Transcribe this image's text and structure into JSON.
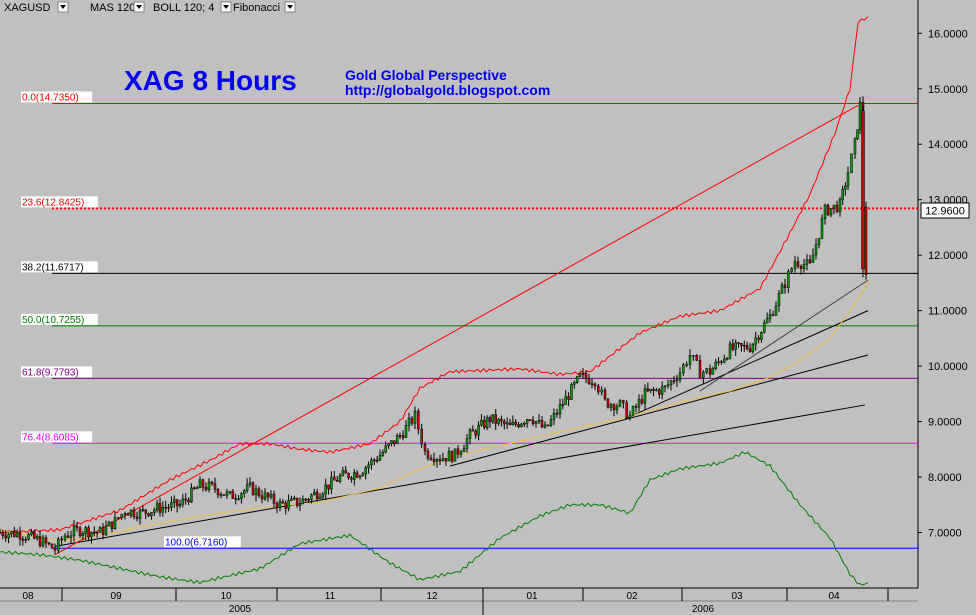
{
  "toolbar": {
    "items": [
      {
        "label": "XAGUSD",
        "color": "#000000"
      },
      {
        "label": "MAS 120",
        "color": "#f0c040"
      },
      {
        "label": "BOLL 120; 4",
        "color": "#ff0000"
      },
      {
        "label": "Fibonacci",
        "color": "#000000"
      }
    ]
  },
  "title": "XAG 8 Hours",
  "subtitle_1": "Gold Global Perspective",
  "subtitle_2": "http://globalgold.blogspot.com",
  "price_badge": "12.9600",
  "chart_data": {
    "type": "candlestick",
    "symbol": "XAGUSD",
    "timeframe": "8 Hours",
    "ylim": [
      6.0,
      16.6
    ],
    "y_ticks": [
      "16.0000",
      "15.0000",
      "14.0000",
      "13.0000",
      "12.0000",
      "11.0000",
      "10.0000",
      "9.0000",
      "8.0000",
      "7.0000"
    ],
    "x_ticks_month": [
      "08",
      "09",
      "10",
      "11",
      "12",
      "01",
      "02",
      "03",
      "04"
    ],
    "x_ticks_year": [
      "2005",
      "2006"
    ],
    "last_price": 12.96,
    "fibonacci": [
      {
        "label": "0.0(14.7350)",
        "value": 14.735,
        "color": "#ff0000",
        "style": "solid"
      },
      {
        "label": "23.6(12.8425)",
        "value": 12.8425,
        "color": "#ff0000",
        "style": "dotted"
      },
      {
        "label": "38.2(11.6717)",
        "value": 11.6717,
        "color": "#000000",
        "style": "solid"
      },
      {
        "label": "50.0(10.7255)",
        "value": 10.7255,
        "color": "#008000",
        "style": "solid"
      },
      {
        "label": "61.8(9.7793)",
        "value": 9.7793,
        "color": "#800080",
        "style": "solid"
      },
      {
        "label": "76.4(8.6085)",
        "value": 8.6085,
        "color": "#ff00ff",
        "style": "solid"
      },
      {
        "label": "100.0(6.7160)",
        "value": 6.716,
        "color": "#0000ff",
        "style": "solid"
      }
    ],
    "price_series": [
      [
        0,
        7.0
      ],
      [
        20,
        6.98
      ],
      [
        40,
        6.85
      ],
      [
        55,
        6.7
      ],
      [
        65,
        6.95
      ],
      [
        80,
        7.05
      ],
      [
        100,
        7.0
      ],
      [
        115,
        7.2
      ],
      [
        125,
        7.4
      ],
      [
        140,
        7.35
      ],
      [
        160,
        7.45
      ],
      [
        180,
        7.5
      ],
      [
        200,
        7.85
      ],
      [
        215,
        7.8
      ],
      [
        230,
        7.65
      ],
      [
        250,
        7.8
      ],
      [
        265,
        7.65
      ],
      [
        280,
        7.5
      ],
      [
        300,
        7.55
      ],
      [
        320,
        7.75
      ],
      [
        340,
        8.0
      ],
      [
        360,
        8.1
      ],
      [
        380,
        8.4
      ],
      [
        400,
        8.75
      ],
      [
        415,
        9.1
      ],
      [
        425,
        8.45
      ],
      [
        440,
        8.35
      ],
      [
        455,
        8.4
      ],
      [
        470,
        8.75
      ],
      [
        490,
        9.05
      ],
      [
        510,
        8.9
      ],
      [
        530,
        9.1
      ],
      [
        545,
        8.85
      ],
      [
        560,
        9.25
      ],
      [
        580,
        9.8
      ],
      [
        595,
        9.75
      ],
      [
        605,
        9.35
      ],
      [
        620,
        9.3
      ],
      [
        630,
        9.1
      ],
      [
        645,
        9.5
      ],
      [
        665,
        9.6
      ],
      [
        680,
        9.9
      ],
      [
        690,
        10.2
      ],
      [
        700,
        9.9
      ],
      [
        710,
        9.9
      ],
      [
        730,
        10.3
      ],
      [
        750,
        10.35
      ],
      [
        770,
        10.9
      ],
      [
        785,
        11.5
      ],
      [
        795,
        11.9
      ],
      [
        810,
        11.8
      ],
      [
        825,
        12.8
      ],
      [
        840,
        12.9
      ],
      [
        848,
        13.5
      ],
      [
        855,
        14.0
      ],
      [
        860,
        14.7
      ],
      [
        863,
        12.9
      ],
      [
        866,
        11.7
      ],
      [
        870,
        12.9
      ]
    ],
    "sma_series": [
      [
        0,
        7.05
      ],
      [
        60,
        6.85
      ],
      [
        100,
        6.95
      ],
      [
        140,
        7.1
      ],
      [
        200,
        7.3
      ],
      [
        260,
        7.45
      ],
      [
        320,
        7.55
      ],
      [
        380,
        7.8
      ],
      [
        420,
        8.15
      ],
      [
        460,
        8.4
      ],
      [
        520,
        8.65
      ],
      [
        580,
        8.9
      ],
      [
        620,
        9.05
      ],
      [
        680,
        9.35
      ],
      [
        730,
        9.55
      ],
      [
        770,
        9.8
      ],
      [
        800,
        10.1
      ],
      [
        830,
        10.5
      ],
      [
        850,
        11.0
      ],
      [
        870,
        11.55
      ]
    ],
    "boll_upper": [
      [
        0,
        7.0
      ],
      [
        60,
        7.05
      ],
      [
        120,
        7.4
      ],
      [
        170,
        7.95
      ],
      [
        210,
        8.3
      ],
      [
        240,
        8.6
      ],
      [
        270,
        8.6
      ],
      [
        300,
        8.5
      ],
      [
        330,
        8.45
      ],
      [
        370,
        8.6
      ],
      [
        400,
        9.0
      ],
      [
        420,
        9.6
      ],
      [
        450,
        9.9
      ],
      [
        520,
        9.95
      ],
      [
        560,
        9.85
      ],
      [
        590,
        9.9
      ],
      [
        640,
        10.6
      ],
      [
        680,
        10.9
      ],
      [
        720,
        11.0
      ],
      [
        760,
        11.4
      ],
      [
        790,
        12.4
      ],
      [
        810,
        13.1
      ],
      [
        835,
        14.2
      ],
      [
        850,
        15.0
      ],
      [
        858,
        16.2
      ],
      [
        868,
        16.3
      ]
    ],
    "boll_lower": [
      [
        0,
        6.65
      ],
      [
        40,
        6.6
      ],
      [
        80,
        6.5
      ],
      [
        120,
        6.35
      ],
      [
        160,
        6.2
      ],
      [
        200,
        6.1
      ],
      [
        260,
        6.35
      ],
      [
        300,
        6.8
      ],
      [
        350,
        6.95
      ],
      [
        390,
        6.45
      ],
      [
        420,
        6.15
      ],
      [
        460,
        6.3
      ],
      [
        500,
        6.9
      ],
      [
        540,
        7.3
      ],
      [
        570,
        7.5
      ],
      [
        600,
        7.5
      ],
      [
        630,
        7.35
      ],
      [
        650,
        7.95
      ],
      [
        680,
        8.15
      ],
      [
        720,
        8.25
      ],
      [
        745,
        8.45
      ],
      [
        770,
        8.2
      ],
      [
        800,
        7.5
      ],
      [
        830,
        6.9
      ],
      [
        850,
        6.25
      ],
      [
        860,
        6.05
      ],
      [
        868,
        6.1
      ]
    ],
    "trendlines": [
      {
        "from": [
          55,
          6.75
        ],
        "to": [
          865,
          9.3
        ],
        "color": "#000000"
      },
      {
        "from": [
          450,
          8.2
        ],
        "to": [
          868,
          10.2
        ],
        "color": "#000000"
      },
      {
        "from": [
          625,
          9.05
        ],
        "to": [
          868,
          11.0
        ],
        "color": "#000000"
      },
      {
        "from": [
          700,
          9.55
        ],
        "to": [
          868,
          11.55
        ],
        "color": "#404040"
      },
      {
        "from": [
          55,
          6.6
        ],
        "to": [
          858,
          14.7
        ],
        "color": "#ff0000"
      }
    ]
  }
}
